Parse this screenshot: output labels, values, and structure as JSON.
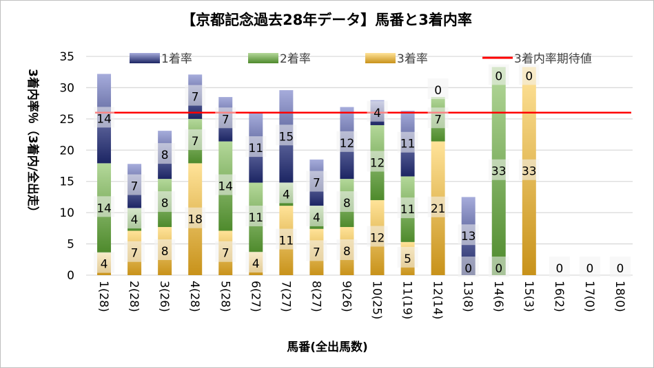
{
  "chart_data": {
    "type": "bar",
    "stacked": true,
    "title": "【京都記念過去28年データ】馬番と3着内率",
    "xlabel": "馬番(全出馬数)",
    "ylabel": "3着内率％（3着内/全出走）",
    "ylim": [
      0,
      35
    ],
    "yticks": [
      0,
      5,
      10,
      15,
      20,
      25,
      30,
      35
    ],
    "grid": true,
    "legend_position": "top",
    "categories": [
      "1(28)",
      "2(28)",
      "3(26)",
      "4(28)",
      "5(28)",
      "6(27)",
      "7(27)",
      "8(27)",
      "9(26)",
      "10(25)",
      "11(19)",
      "12(14)",
      "13(8)",
      "14(6)",
      "15(3)",
      "16(2)",
      "17(0)",
      "18(0)"
    ],
    "series": [
      {
        "name": "3着率",
        "color_top": "#ffe399",
        "color_bottom": "#c8921a",
        "values": [
          3.6,
          7.1,
          7.7,
          17.9,
          7.1,
          3.7,
          11.1,
          7.4,
          7.7,
          12.0,
          5.3,
          21.4,
          0,
          0,
          33.3,
          0,
          0,
          0
        ],
        "labels": [
          4,
          7,
          8,
          18,
          7,
          4,
          11,
          7,
          8,
          12,
          5,
          21,
          0,
          0,
          33,
          0,
          0,
          0
        ]
      },
      {
        "name": "2着率",
        "color_top": "#b4d89a",
        "color_bottom": "#4e8a2c",
        "values": [
          14.3,
          3.6,
          7.7,
          7.1,
          14.3,
          11.1,
          3.7,
          3.7,
          7.7,
          12.0,
          10.5,
          7.1,
          0,
          33.3,
          0,
          0,
          0,
          0
        ],
        "labels": [
          14,
          4,
          8,
          7,
          14,
          11,
          4,
          4,
          8,
          12,
          11,
          7,
          null,
          33,
          null,
          null,
          null,
          null
        ]
      },
      {
        "name": "1着率",
        "color_top": "#a6acdb",
        "color_bottom": "#1c2563",
        "values": [
          14.3,
          7.1,
          7.7,
          7.1,
          7.1,
          11.1,
          14.8,
          7.4,
          11.5,
          4.0,
          10.5,
          0,
          12.5,
          0,
          0,
          0,
          0,
          0
        ],
        "labels": [
          14,
          7,
          8,
          7,
          7,
          11,
          15,
          7,
          12,
          4,
          11,
          0,
          13,
          0,
          0,
          null,
          null,
          null
        ]
      }
    ],
    "reference_line": {
      "name": "3着内率期待値",
      "value": 26,
      "color": "#ff0000"
    },
    "legend_order": [
      "1着率",
      "2着率",
      "3着率",
      "3着内率期待値"
    ]
  }
}
